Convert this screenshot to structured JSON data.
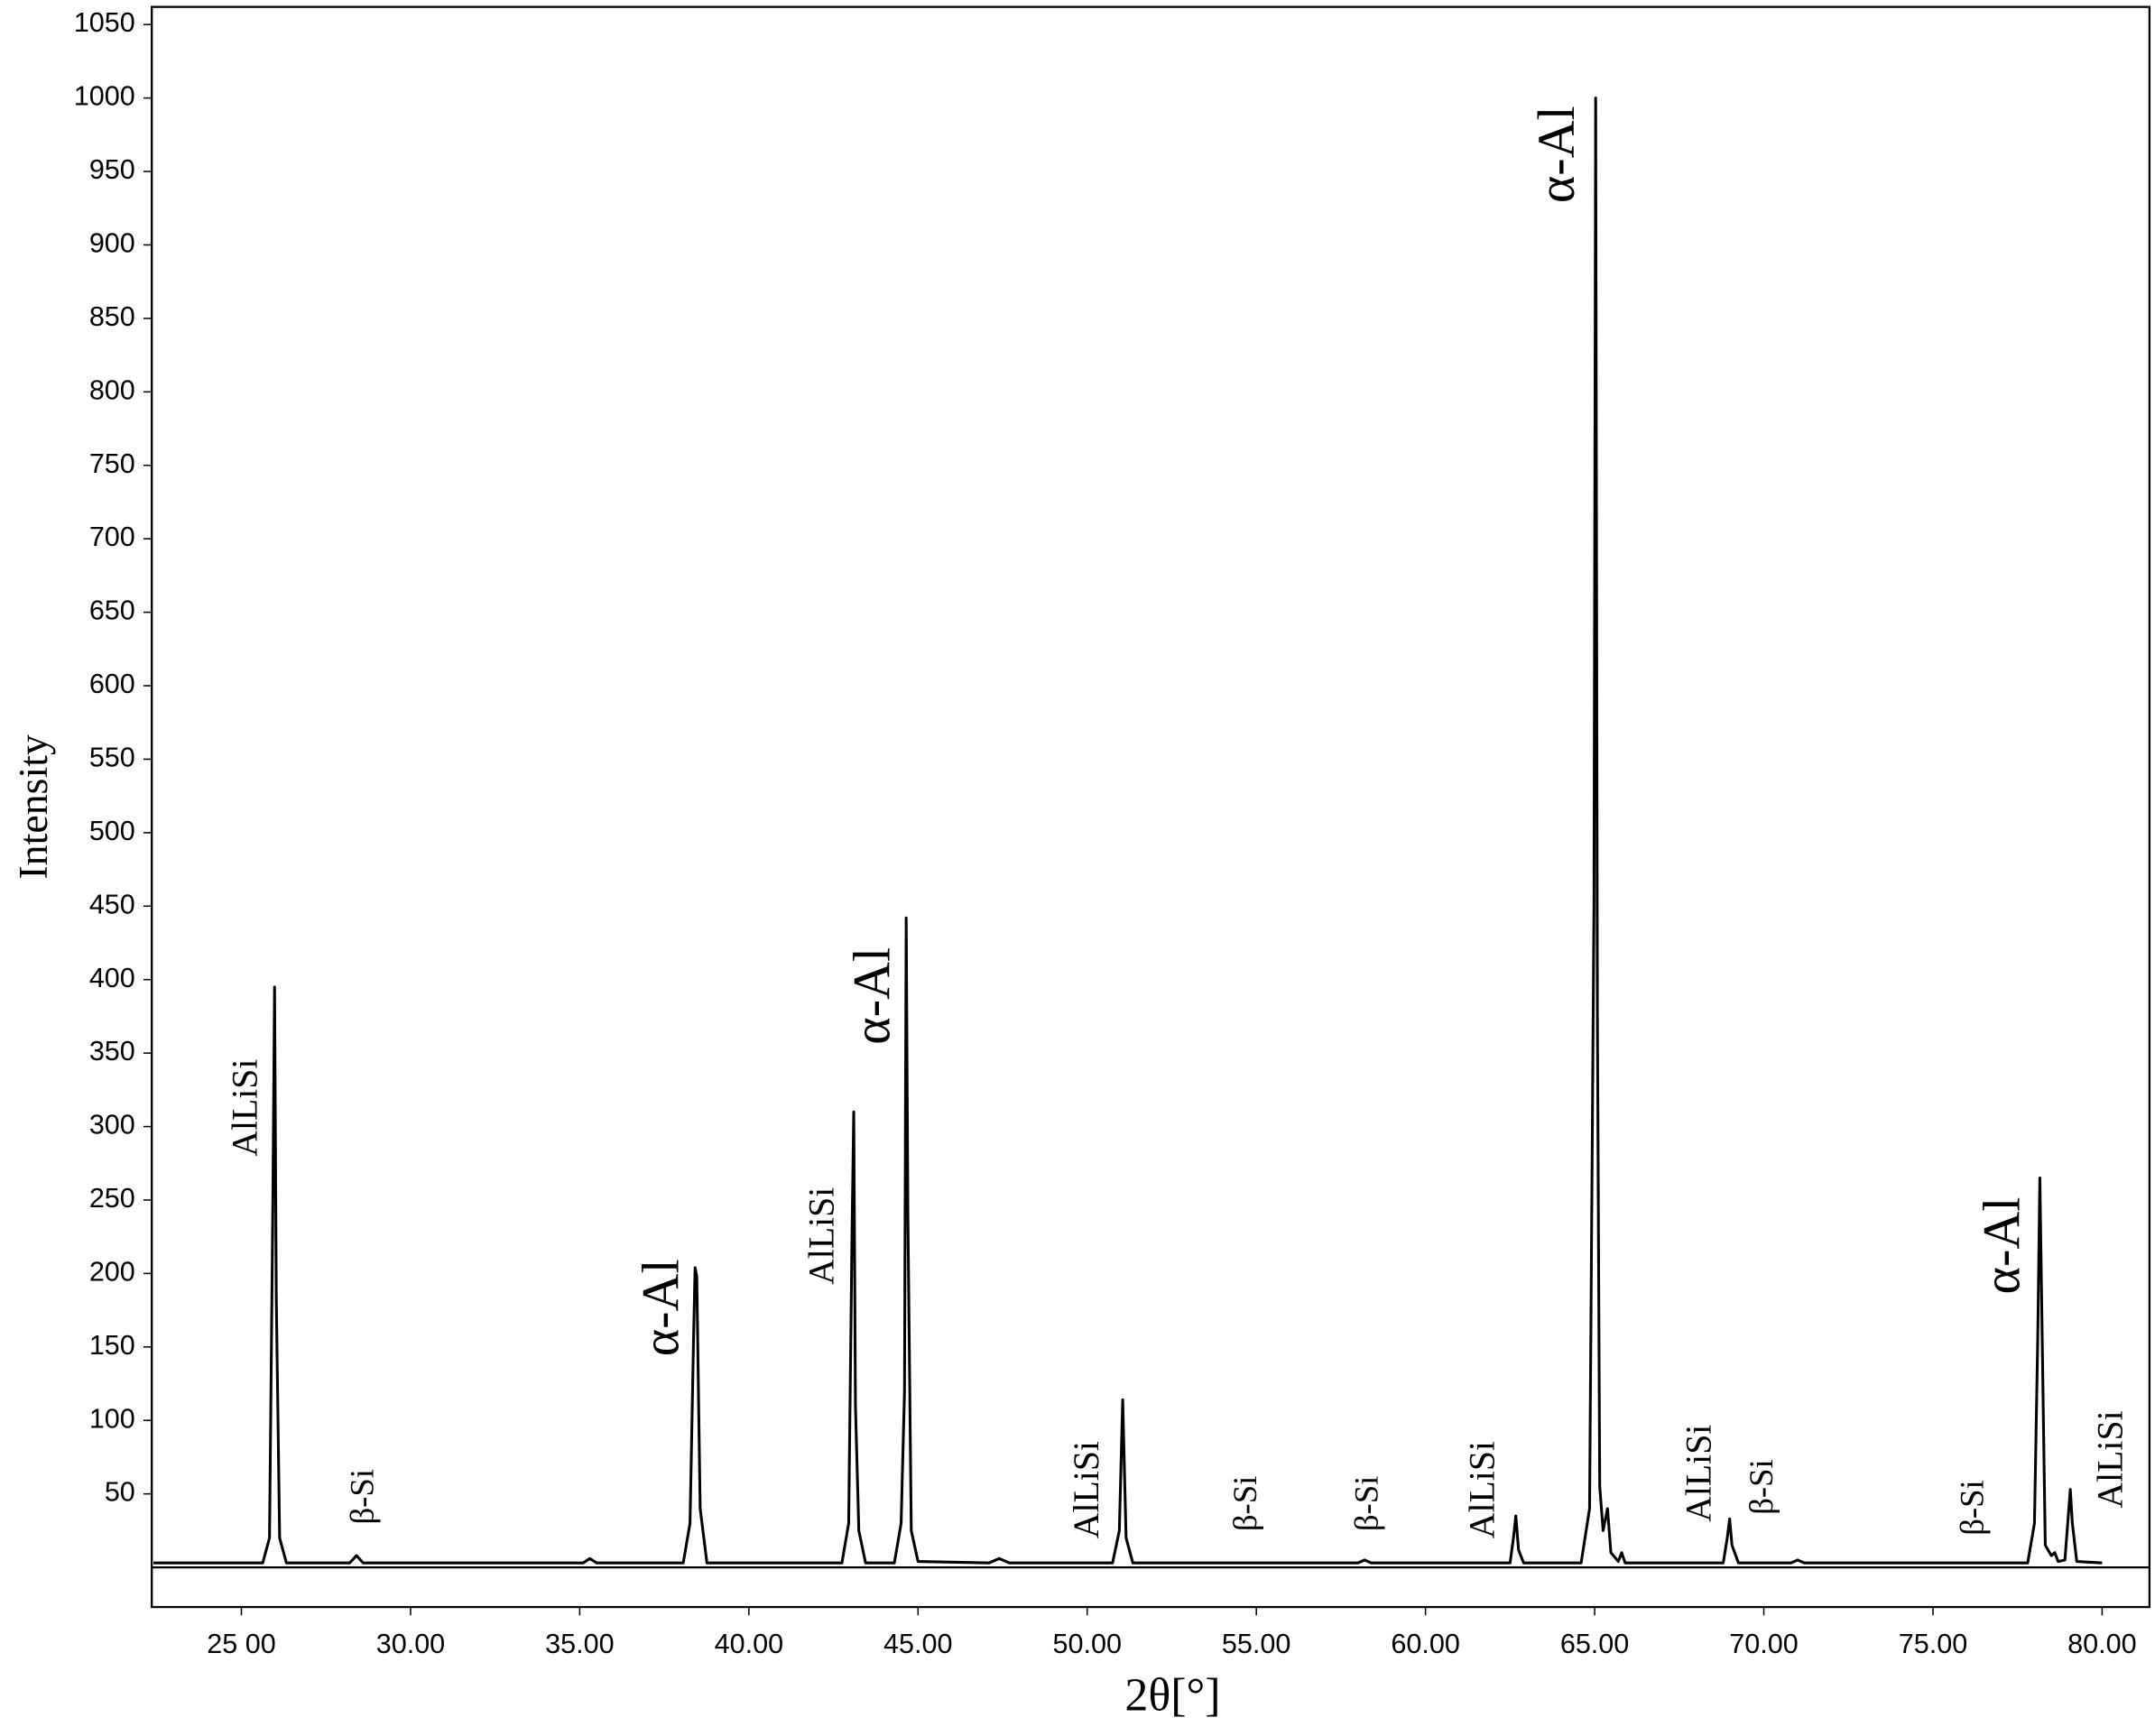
{
  "chart_data": {
    "type": "line",
    "x_label": "2θ[°]",
    "y_label": "Intensity",
    "x": [
      22.4,
      24.0,
      25.63,
      25.83,
      25.93,
      25.98,
      26.03,
      26.13,
      26.33,
      28.2,
      28.4,
      28.6,
      35.1,
      35.3,
      35.5,
      38.06,
      38.26,
      38.36,
      38.41,
      38.46,
      38.56,
      38.76,
      42.75,
      42.95,
      43.05,
      43.1,
      43.15,
      43.25,
      43.45,
      44.3,
      44.5,
      44.6,
      44.65,
      44.7,
      44.8,
      45.0,
      47.1,
      47.4,
      47.7,
      50.75,
      50.95,
      51.05,
      51.15,
      51.35,
      58.0,
      58.2,
      58.4,
      62.5,
      62.6,
      62.67,
      62.75,
      62.9,
      64.6,
      64.85,
      64.98,
      65.03,
      65.08,
      65.15,
      65.25,
      65.38,
      65.48,
      65.7,
      65.8,
      65.9,
      68.8,
      68.92,
      68.99,
      69.06,
      69.25,
      70.8,
      71.0,
      71.2,
      77.8,
      78.0,
      78.1,
      78.16,
      78.22,
      78.32,
      78.5,
      78.6,
      78.7,
      78.9,
      79.0,
      79.06,
      79.12,
      79.25,
      80.0
    ],
    "values": [
      3,
      3,
      3,
      20,
      250,
      395,
      185,
      20,
      3,
      3,
      8,
      3,
      3,
      6,
      3,
      3,
      30,
      150,
      204,
      198,
      40,
      3,
      3,
      30,
      230,
      310,
      110,
      25,
      3,
      3,
      30,
      120,
      442,
      240,
      25,
      4,
      3,
      6,
      3,
      3,
      25,
      114,
      20,
      3,
      3,
      5,
      3,
      3,
      20,
      35,
      12,
      3,
      3,
      40,
      450,
      1000,
      380,
      55,
      25,
      40,
      10,
      4,
      10,
      3,
      3,
      20,
      33,
      15,
      3,
      3,
      5,
      3,
      3,
      30,
      160,
      265,
      170,
      15,
      8,
      10,
      4,
      5,
      35,
      53,
      30,
      4,
      3
    ],
    "color": "#000000",
    "xlim": [
      22.35,
      81.4
    ],
    "ylim": [
      -27,
      1062
    ],
    "xticks": [
      {
        "value": 25,
        "label": "25 00"
      },
      {
        "value": 30,
        "label": "30.00"
      },
      {
        "value": 35,
        "label": "35.00"
      },
      {
        "value": 40,
        "label": "40.00"
      },
      {
        "value": 45,
        "label": "45.00"
      },
      {
        "value": 50,
        "label": "50.00"
      },
      {
        "value": 55,
        "label": "55.00"
      },
      {
        "value": 60,
        "label": "60.00"
      },
      {
        "value": 65,
        "label": "65.00"
      },
      {
        "value": 70,
        "label": "70.00"
      },
      {
        "value": 75,
        "label": "75.00"
      },
      {
        "value": 80,
        "label": "80.00"
      }
    ],
    "yticks": [
      50,
      100,
      150,
      200,
      250,
      300,
      350,
      400,
      450,
      500,
      550,
      600,
      650,
      700,
      750,
      800,
      850,
      900,
      950,
      1000,
      1050
    ],
    "annotations": [
      "AlLiSi",
      "β-Si",
      "α-Al",
      "AlLiSi",
      "α-Al",
      "AlLiSi",
      "β-Si",
      "β-Si",
      "AlLiSi",
      "α-Al",
      "AlLiSi",
      "β-Si",
      "β-Si",
      "α-Al",
      "AlLiSi"
    ]
  }
}
